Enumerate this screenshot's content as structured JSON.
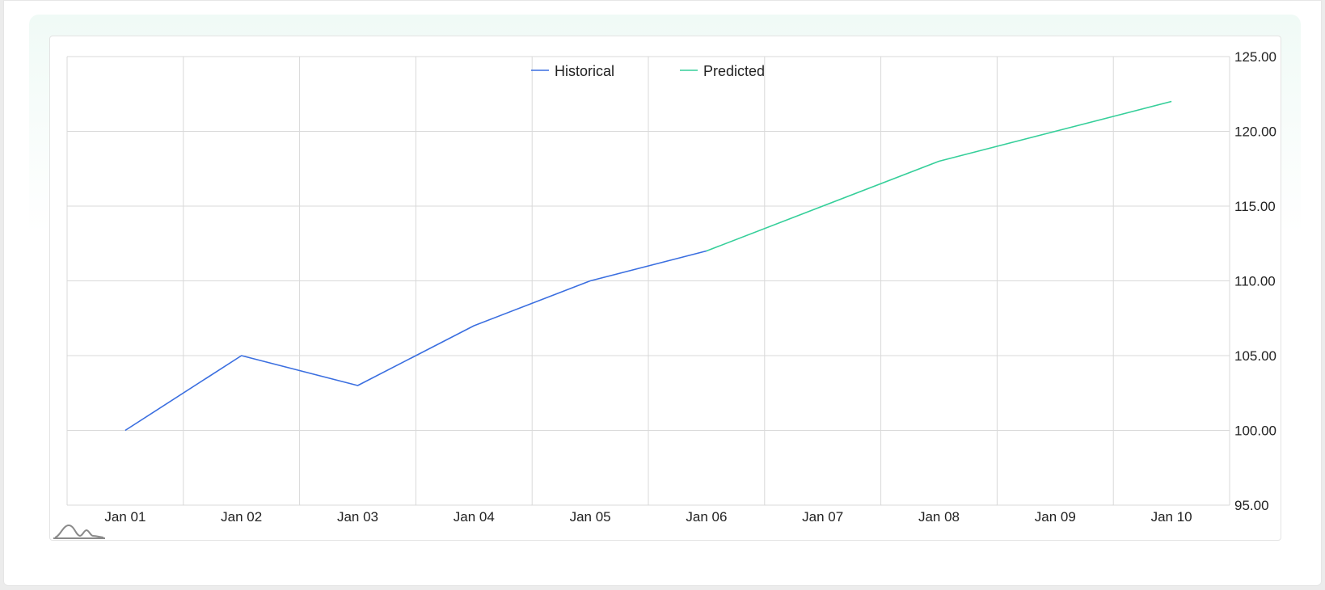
{
  "chart_data": {
    "type": "line",
    "x": [
      "Jan 01",
      "Jan 02",
      "Jan 03",
      "Jan 04",
      "Jan 05",
      "Jan 06",
      "Jan 07",
      "Jan 08",
      "Jan 09",
      "Jan 10"
    ],
    "series": [
      {
        "name": "Historical",
        "color": "#3b6fe0",
        "points": [
          [
            "Jan 01",
            100
          ],
          [
            "Jan 02",
            105
          ],
          [
            "Jan 03",
            103
          ],
          [
            "Jan 04",
            107
          ],
          [
            "Jan 05",
            110
          ],
          [
            "Jan 06",
            112
          ]
        ]
      },
      {
        "name": "Predicted",
        "color": "#36cf9a",
        "points": [
          [
            "Jan 06",
            112
          ],
          [
            "Jan 08",
            118
          ],
          [
            "Jan 10",
            122
          ]
        ]
      }
    ],
    "y_ticks": [
      "95.00",
      "100.00",
      "105.00",
      "110.00",
      "115.00",
      "120.00",
      "125.00"
    ],
    "ylim": [
      95,
      125
    ],
    "y_axis_side": "right",
    "grid": true,
    "legend_position": "top-center",
    "title": "",
    "xlabel": "",
    "ylabel": ""
  },
  "watermark_icon": "bell-curve-logo-icon"
}
